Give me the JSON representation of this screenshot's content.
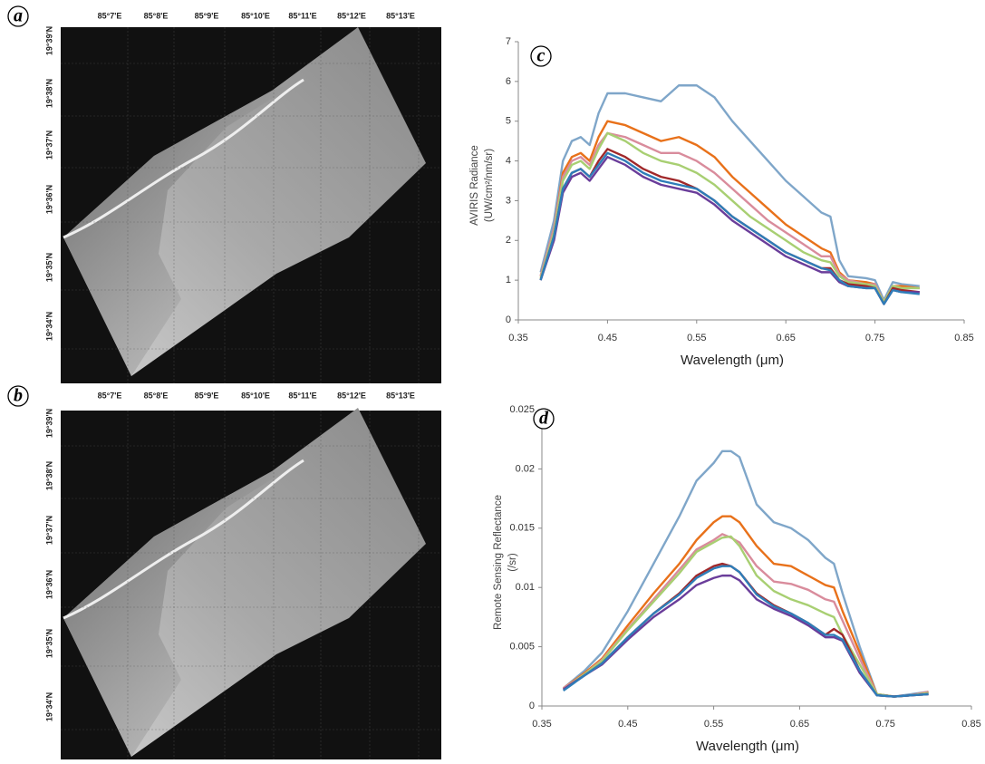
{
  "maps": [
    {
      "panel": "a",
      "x_labels": [
        "85°7'E",
        "85°8'E",
        "85°9'E",
        "85°10'E",
        "85°11'E",
        "85°12'E",
        "85°13'E"
      ],
      "y_labels": [
        "19°39'N",
        "19°38'N",
        "19°37'N",
        "19°36'N",
        "19°35'N",
        "19°34'N"
      ]
    },
    {
      "panel": "b",
      "x_labels": [
        "85°7'E",
        "85°8'E",
        "85°9'E",
        "85°10'E",
        "85°11'E",
        "85°12'E",
        "85°13'E"
      ],
      "y_labels": [
        "19°39'N",
        "19°38'N",
        "19°37'N",
        "19°36'N",
        "19°35'N",
        "19°34'N"
      ]
    }
  ],
  "chart_data": [
    {
      "type": "line",
      "panel": "c",
      "xlabel": "Wavelength (μm)",
      "ylabel": [
        "AVIRIS Radiance",
        "(UW/cm²/nm/sr)"
      ],
      "xlim": [
        0.35,
        0.85
      ],
      "xticks": [
        0.35,
        0.45,
        0.55,
        0.65,
        0.75,
        0.85
      ],
      "ylim": [
        0,
        7
      ],
      "yticks": [
        0,
        1,
        2,
        3,
        4,
        5,
        6,
        7
      ],
      "grid": false,
      "x": [
        0.375,
        0.39,
        0.4,
        0.41,
        0.42,
        0.43,
        0.44,
        0.45,
        0.47,
        0.49,
        0.51,
        0.53,
        0.55,
        0.57,
        0.59,
        0.61,
        0.63,
        0.65,
        0.67,
        0.69,
        0.7,
        0.71,
        0.72,
        0.74,
        0.75,
        0.76,
        0.77,
        0.78,
        0.8
      ],
      "series": [
        {
          "color": "#7fa6c9",
          "values": [
            1.2,
            2.5,
            4.0,
            4.5,
            4.6,
            4.4,
            5.2,
            5.7,
            5.7,
            5.6,
            5.5,
            5.9,
            5.9,
            5.6,
            5.0,
            4.5,
            4.0,
            3.5,
            3.1,
            2.7,
            2.6,
            1.5,
            1.1,
            1.05,
            1.0,
            0.5,
            0.95,
            0.9,
            0.85
          ]
        },
        {
          "color": "#e8711a",
          "values": [
            1.1,
            2.3,
            3.7,
            4.1,
            4.2,
            4.0,
            4.6,
            5.0,
            4.9,
            4.7,
            4.5,
            4.6,
            4.4,
            4.1,
            3.6,
            3.2,
            2.8,
            2.4,
            2.1,
            1.8,
            1.7,
            1.2,
            1.0,
            0.95,
            0.9,
            0.45,
            0.85,
            0.85,
            0.8
          ]
        },
        {
          "color": "#d98c9c",
          "values": [
            1.1,
            2.3,
            3.6,
            4.0,
            4.1,
            3.9,
            4.4,
            4.7,
            4.6,
            4.4,
            4.2,
            4.2,
            4.0,
            3.7,
            3.3,
            2.9,
            2.5,
            2.2,
            1.9,
            1.6,
            1.6,
            1.15,
            1.0,
            0.9,
            0.9,
            0.45,
            0.85,
            0.8,
            0.8
          ]
        },
        {
          "color": "#a8cf72",
          "values": [
            1.05,
            2.2,
            3.5,
            3.9,
            4.0,
            3.8,
            4.3,
            4.7,
            4.5,
            4.2,
            4.0,
            3.9,
            3.7,
            3.4,
            3.0,
            2.6,
            2.3,
            2.0,
            1.7,
            1.5,
            1.45,
            1.1,
            0.95,
            0.9,
            0.85,
            0.45,
            0.85,
            0.8,
            0.8
          ]
        },
        {
          "color": "#a0282a",
          "values": [
            1.0,
            2.1,
            3.3,
            3.7,
            3.8,
            3.6,
            4.0,
            4.3,
            4.1,
            3.8,
            3.6,
            3.5,
            3.3,
            3.0,
            2.6,
            2.3,
            2.0,
            1.7,
            1.5,
            1.3,
            1.3,
            1.0,
            0.9,
            0.85,
            0.8,
            0.4,
            0.8,
            0.75,
            0.7
          ]
        },
        {
          "color": "#6a3d9a",
          "values": [
            1.0,
            2.0,
            3.2,
            3.6,
            3.7,
            3.5,
            3.8,
            4.1,
            3.9,
            3.6,
            3.4,
            3.3,
            3.2,
            2.9,
            2.5,
            2.2,
            1.9,
            1.6,
            1.4,
            1.2,
            1.2,
            0.95,
            0.85,
            0.8,
            0.8,
            0.4,
            0.75,
            0.7,
            0.7
          ]
        },
        {
          "color": "#2e7db8",
          "values": [
            1.0,
            2.1,
            3.3,
            3.7,
            3.8,
            3.6,
            3.9,
            4.2,
            4.0,
            3.7,
            3.5,
            3.4,
            3.3,
            3.0,
            2.6,
            2.3,
            2.0,
            1.7,
            1.5,
            1.3,
            1.25,
            1.0,
            0.85,
            0.8,
            0.8,
            0.4,
            0.75,
            0.7,
            0.65
          ]
        }
      ]
    },
    {
      "type": "line",
      "panel": "d",
      "xlabel": "Wavelength (μm)",
      "ylabel": [
        "Remote Sensing Reflectance",
        "(/sr)"
      ],
      "xlim": [
        0.35,
        0.85
      ],
      "xticks": [
        0.35,
        0.45,
        0.55,
        0.65,
        0.75,
        0.85
      ],
      "ylim": [
        0,
        0.025
      ],
      "yticks": [
        0,
        0.005,
        0.01,
        0.015,
        0.02,
        0.025
      ],
      "grid": false,
      "x": [
        0.375,
        0.4,
        0.42,
        0.45,
        0.48,
        0.51,
        0.53,
        0.55,
        0.56,
        0.57,
        0.58,
        0.6,
        0.62,
        0.64,
        0.66,
        0.68,
        0.69,
        0.7,
        0.72,
        0.74,
        0.76,
        0.78,
        0.8
      ],
      "series": [
        {
          "color": "#7fa6c9",
          "values": [
            0.0015,
            0.003,
            0.0045,
            0.008,
            0.012,
            0.016,
            0.019,
            0.0205,
            0.0215,
            0.0215,
            0.021,
            0.017,
            0.0155,
            0.015,
            0.014,
            0.0125,
            0.012,
            0.0095,
            0.005,
            0.001,
            0.0008,
            0.001,
            0.0012
          ]
        },
        {
          "color": "#e8711a",
          "values": [
            0.0015,
            0.0028,
            0.004,
            0.0068,
            0.0095,
            0.012,
            0.014,
            0.0155,
            0.016,
            0.016,
            0.0155,
            0.0135,
            0.012,
            0.0118,
            0.011,
            0.0102,
            0.01,
            0.008,
            0.0045,
            0.001,
            0.0008,
            0.0009,
            0.0012
          ]
        },
        {
          "color": "#d98c9c",
          "values": [
            0.0015,
            0.0027,
            0.0039,
            0.0065,
            0.009,
            0.0115,
            0.0132,
            0.014,
            0.0145,
            0.0142,
            0.0138,
            0.0118,
            0.0105,
            0.0103,
            0.0098,
            0.009,
            0.0088,
            0.0072,
            0.004,
            0.001,
            0.0008,
            0.0009,
            0.0012
          ]
        },
        {
          "color": "#a8cf72",
          "values": [
            0.0014,
            0.0027,
            0.0038,
            0.0064,
            0.0088,
            0.0112,
            0.013,
            0.0138,
            0.0142,
            0.0143,
            0.0135,
            0.011,
            0.0097,
            0.009,
            0.0085,
            0.0078,
            0.0075,
            0.006,
            0.0035,
            0.001,
            0.0008,
            0.0009,
            0.0011
          ]
        },
        {
          "color": "#a0282a",
          "values": [
            0.0014,
            0.0026,
            0.0036,
            0.0058,
            0.0078,
            0.0095,
            0.011,
            0.0118,
            0.012,
            0.0118,
            0.0113,
            0.0095,
            0.0085,
            0.0078,
            0.007,
            0.006,
            0.0065,
            0.006,
            0.003,
            0.0009,
            0.0008,
            0.0009,
            0.001
          ]
        },
        {
          "color": "#6a3d9a",
          "values": [
            0.0014,
            0.0026,
            0.0035,
            0.0056,
            0.0075,
            0.009,
            0.0102,
            0.0108,
            0.011,
            0.011,
            0.0106,
            0.009,
            0.0082,
            0.0076,
            0.0068,
            0.0058,
            0.0058,
            0.0055,
            0.0028,
            0.0009,
            0.0008,
            0.0009,
            0.001
          ]
        },
        {
          "color": "#2e7db8",
          "values": [
            0.0013,
            0.0026,
            0.0036,
            0.0058,
            0.0078,
            0.0094,
            0.0108,
            0.0116,
            0.0118,
            0.0118,
            0.0113,
            0.0094,
            0.0084,
            0.0078,
            0.007,
            0.006,
            0.006,
            0.0056,
            0.003,
            0.0009,
            0.0008,
            0.0009,
            0.001
          ]
        }
      ]
    }
  ]
}
